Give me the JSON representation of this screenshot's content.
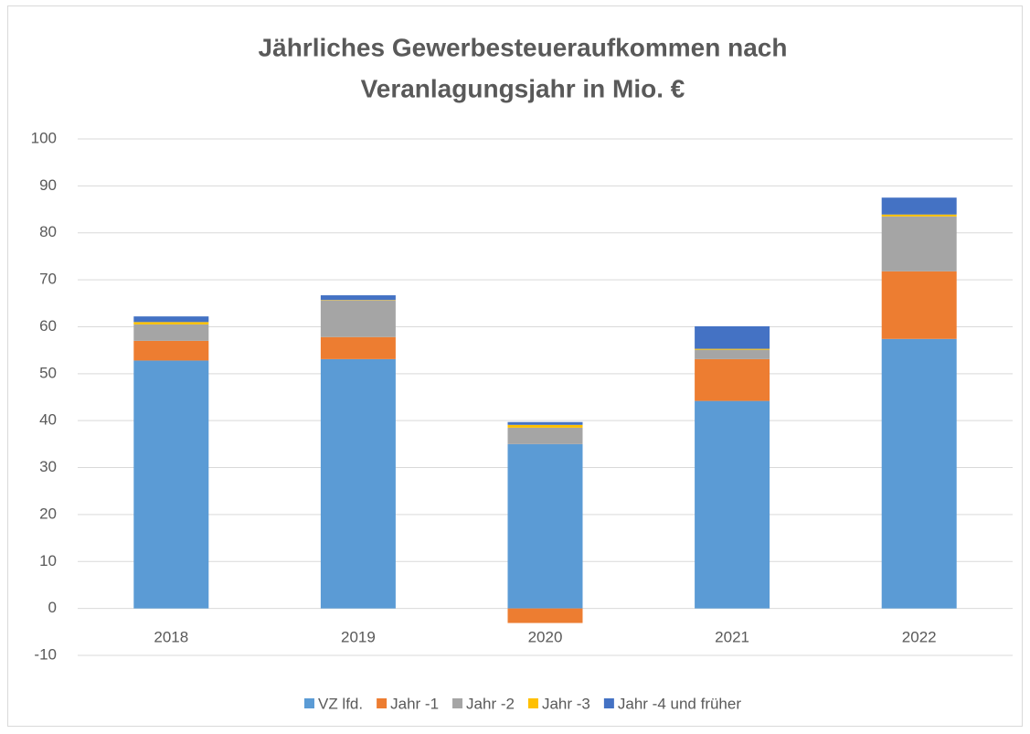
{
  "chart_data": {
    "type": "stacked_bar",
    "title": [
      "Jährliches Gewerbesteueraufkommen nach",
      "Veranlagungsjahr in Mio. €"
    ],
    "categories": [
      "2018",
      "2019",
      "2020",
      "2021",
      "2022"
    ],
    "series": [
      {
        "name": "VZ lfd.",
        "color": "#5b9bd5",
        "values": [
          52.8,
          53.1,
          35.0,
          44.2,
          57.4
        ]
      },
      {
        "name": "Jahr -1",
        "color": "#ed7d31",
        "values": [
          4.2,
          4.7,
          -3.1,
          8.9,
          14.4
        ]
      },
      {
        "name": "Jahr -2",
        "color": "#a5a5a5",
        "values": [
          3.5,
          7.8,
          3.5,
          2.0,
          11.7
        ]
      },
      {
        "name": "Jahr -3",
        "color": "#ffc000",
        "values": [
          0.5,
          0.1,
          0.6,
          0.2,
          0.4
        ]
      },
      {
        "name": "Jahr -4 und früher",
        "color": "#4472c4",
        "values": [
          1.2,
          1.0,
          0.6,
          4.8,
          3.6
        ]
      }
    ],
    "ylim": [
      -10,
      100
    ],
    "yticks": [
      -10,
      0,
      10,
      20,
      30,
      40,
      50,
      60,
      70,
      80,
      90,
      100
    ],
    "grid": true,
    "legend": "bottom"
  }
}
